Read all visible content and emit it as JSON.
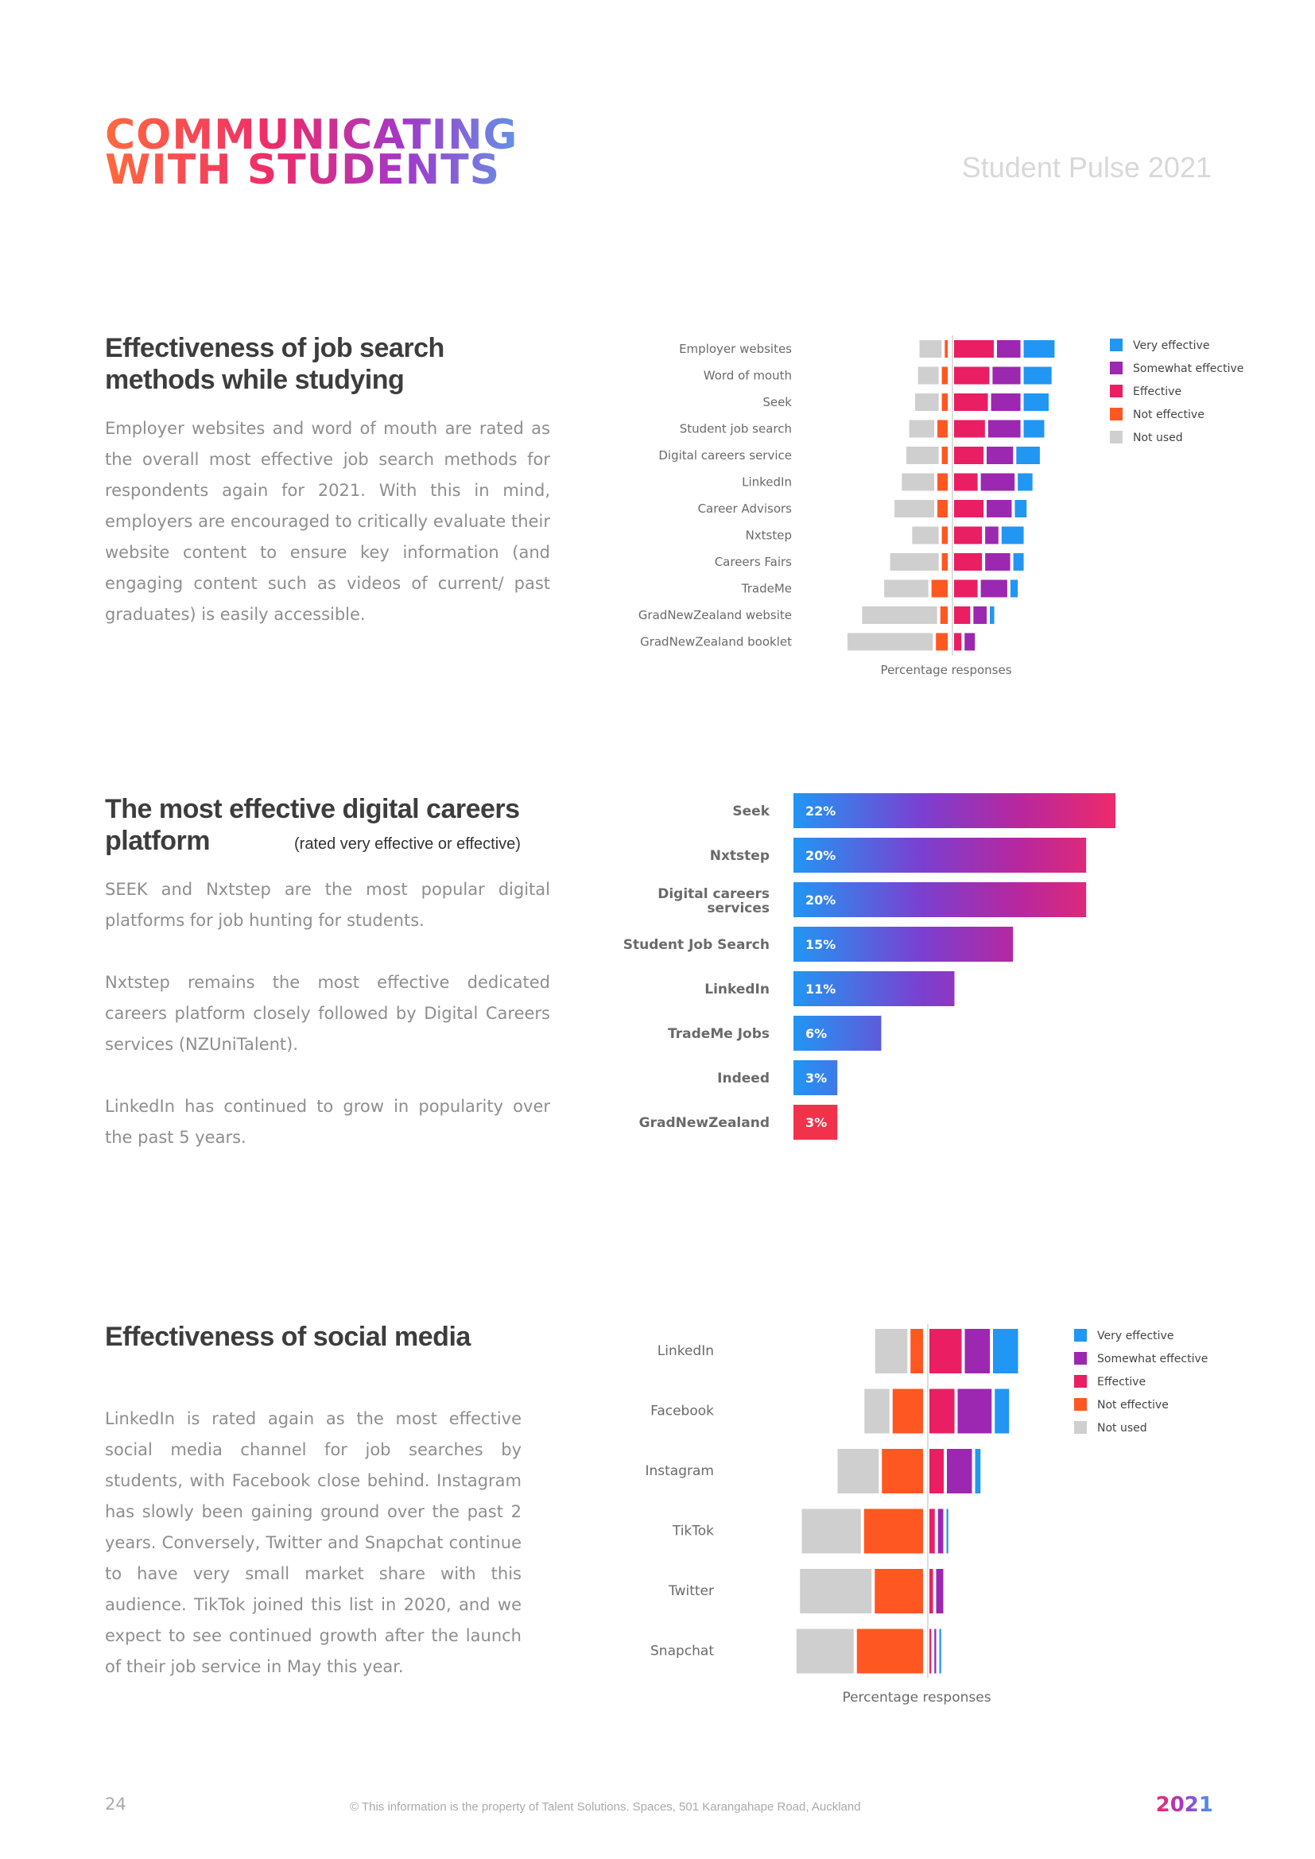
{
  "header": {
    "logo_line1": "COMMUNICATING",
    "logo_line2": "WITH STUDENTS",
    "publication": "Student Pulse 2021"
  },
  "section1": {
    "title_line1": "Effectiveness of job search",
    "title_line2": "methods while studying",
    "paragraph": "Employer websites and word of mouth are rated as the overall most effective job search methods for respondents again for 2021. With this in mind, employers are encouraged to critically evaluate their website content to ensure key information (and engaging content such as videos of current/ past graduates) is easily accessible."
  },
  "section2": {
    "title_line1": "The most effective digital careers",
    "title_line2": "platform",
    "title_sub": "(rated very effective or effective)",
    "paragraph1": "SEEK and Nxtstep are the most popular digital platforms for job hunting for students.",
    "paragraph2": "Nxtstep remains the most effective dedicated careers platform closely followed by Digital Careers services (NZUniTalent).",
    "paragraph3": "LinkedIn has continued to grow in popularity over the past 5 years."
  },
  "section3": {
    "title": "Effectiveness of social media",
    "paragraph": "LinkedIn is rated again as the most effective social media channel for job searches by students, with Facebook close behind. Instagram has slowly been gaining ground over the past 2 years. Conversely, Twitter and Snapchat continue to have very small market share with this audience. TikTok joined this list in 2020, and we expect to see continued growth after the launch of their job service in May this year."
  },
  "footer": {
    "page_number": "24",
    "note": "© This information is the property of Talent Solutions. Spaces, 501 Karangahape Road, Auckland",
    "year": "2021"
  },
  "colors": {
    "very_effective": "#2196f3",
    "somewhat_effective": "#9c27b0",
    "effective": "#e91e63",
    "not_effective": "#ff5722",
    "not_used": "#cfcfcf"
  },
  "chart_data": [
    {
      "id": "job-search-methods",
      "type": "bar",
      "orientation": "horizontal-diverging-stacked",
      "xlabel": "Percentage responses",
      "legend": [
        "Very effective",
        "Somewhat effective",
        "Effective",
        "Not effective",
        "Not used"
      ],
      "legend_position": "right",
      "categories": [
        "Employer websites",
        "Word of mouth",
        "Seek",
        "Student job search",
        "Digital careers service",
        "LinkedIn",
        "Career Advisors",
        "Nxtstep",
        "Careers Fairs",
        "TradeMe",
        "GradNewZealand website",
        "GradNewZealand booklet"
      ],
      "series": [
        {
          "name": "Not used",
          "side": "negative",
          "values": [
            15,
            14,
            16,
            17,
            22,
            22,
            27,
            18,
            33,
            30,
            51,
            58
          ]
        },
        {
          "name": "Not effective",
          "side": "negative",
          "values": [
            2,
            4,
            4,
            7,
            4,
            7,
            7,
            4,
            4,
            11,
            5,
            8
          ]
        },
        {
          "name": "Effective",
          "side": "positive",
          "values": [
            27,
            24,
            23,
            21,
            20,
            16,
            20,
            19,
            19,
            16,
            11,
            5
          ]
        },
        {
          "name": "Somewhat effective",
          "side": "positive",
          "values": [
            16,
            19,
            20,
            22,
            18,
            23,
            17,
            9,
            17,
            18,
            9,
            7
          ]
        },
        {
          "name": "Very effective",
          "side": "positive",
          "values": [
            21,
            19,
            17,
            14,
            16,
            10,
            8,
            15,
            7,
            5,
            3,
            0
          ]
        }
      ]
    },
    {
      "id": "digital-platforms",
      "type": "bar",
      "orientation": "horizontal",
      "categories": [
        "Seek",
        "Nxtstep",
        "Digital careers services",
        "Student Job Search",
        "LinkedIn",
        "TradeMe Jobs",
        "Indeed",
        "GradNewZealand"
      ],
      "values": [
        22,
        20,
        20,
        15,
        11,
        6,
        3,
        3
      ],
      "labels": [
        "22%",
        "20%",
        "20%",
        "15%",
        "11%",
        "6%",
        "3%",
        "3%"
      ],
      "xlim": [
        0,
        22
      ]
    },
    {
      "id": "social-media",
      "type": "bar",
      "orientation": "horizontal-diverging-stacked",
      "xlabel": "Percentage responses",
      "legend": [
        "Very effective",
        "Somewhat effective",
        "Effective",
        "Not effective",
        "Not used"
      ],
      "legend_position": "right",
      "categories": [
        "LinkedIn",
        "Facebook",
        "Instagram",
        "TikTok",
        "Twitter",
        "Snapchat"
      ],
      "series": [
        {
          "name": "Not used",
          "side": "negative",
          "values": [
            18,
            14,
            23,
            33,
            40,
            32
          ]
        },
        {
          "name": "Not effective",
          "side": "negative",
          "values": [
            7,
            17,
            23,
            33,
            27,
            37
          ]
        },
        {
          "name": "Effective",
          "side": "positive",
          "values": [
            18,
            14,
            8,
            3,
            2,
            1
          ]
        },
        {
          "name": "Somewhat effective",
          "side": "positive",
          "values": [
            14,
            19,
            14,
            3,
            4,
            1
          ]
        },
        {
          "name": "Very effective",
          "side": "positive",
          "values": [
            14,
            8,
            3,
            1,
            0,
            1
          ]
        }
      ]
    }
  ]
}
